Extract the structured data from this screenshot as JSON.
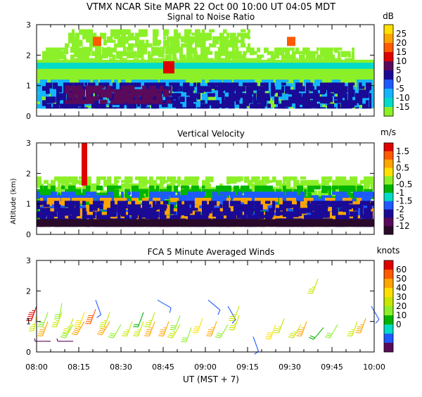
{
  "chart_data": {
    "header": "VTMX  NCAR Site  MAPR 22 Oct 00  10:00 UT  04:05  MDT",
    "shared_y_axis_label": "Altitude (km)",
    "x_axis": {
      "label": "UT  (MST + 7)",
      "tick_labels": [
        "08:00",
        "08:15",
        "08:30",
        "08:45",
        "09:00",
        "09:15",
        "09:30",
        "09:45",
        "10:00"
      ],
      "tick_minutes": [
        0,
        15,
        30,
        45,
        60,
        75,
        90,
        105,
        120
      ],
      "xlim_minutes": [
        0,
        120
      ]
    },
    "panels": [
      {
        "type": "heatmap",
        "title": "Signal to Noise Ratio",
        "units": "dB",
        "ylim": [
          0,
          3
        ],
        "yticks": [
          "0",
          "1",
          "2",
          "3"
        ],
        "scale_labels": [
          "25",
          "20",
          "15",
          "10",
          "5",
          "0",
          "-5",
          "-10",
          "-15"
        ],
        "scale_colors": [
          "#ffe000",
          "#ffa500",
          "#ff5a00",
          "#e00000",
          "#5a0a5a",
          "#1a0a96",
          "#1e5aff",
          "#14b4ff",
          "#00dcc8",
          "#8cf028"
        ],
        "field_layers": [
          {
            "band_km": [
              0.25,
              1.85
            ],
            "from_min": 0,
            "to_min": 119,
            "class": 9
          },
          {
            "band_km": [
              1.85,
              2.25
            ],
            "from_min": 2,
            "to_min": 112,
            "class": 9,
            "patchy": true
          },
          {
            "band_km": [
              2.25,
              2.85
            ],
            "from_min": 10,
            "to_min": 75,
            "class": 9,
            "patchy": true
          },
          {
            "band_km": [
              1.55,
              1.75
            ],
            "from_min": 0,
            "to_min": 119,
            "class": 8
          },
          {
            "band_km": [
              0.25,
              1.2
            ],
            "from_min": 0,
            "to_min": 119,
            "class": 7,
            "patchy": true
          },
          {
            "band_km": [
              0.25,
              1.1
            ],
            "from_min": 2,
            "to_min": 118,
            "class": 5,
            "patchy": true
          },
          {
            "band_km": [
              0.4,
              1.0
            ],
            "from_min": 10,
            "to_min": 47,
            "class": 4,
            "patchy": true
          },
          {
            "band_km": [
              1.4,
              1.8
            ],
            "from_min": 45,
            "to_min": 48,
            "class": 3
          },
          {
            "band_km": [
              2.3,
              2.6
            ],
            "from_min": 20,
            "to_min": 22,
            "class": 2
          },
          {
            "band_km": [
              2.3,
              2.6
            ],
            "from_min": 89,
            "to_min": 91,
            "class": 2
          }
        ]
      },
      {
        "type": "heatmap",
        "title": "Vertical Velocity",
        "units": "m/s",
        "ylim": [
          0,
          3
        ],
        "yticks": [
          "0",
          "1",
          "2",
          "3"
        ],
        "scale_labels": [
          "1.5",
          "1",
          "0.5",
          "0",
          "-0.5",
          "-1",
          "-1.5",
          "-2",
          "-5",
          "-12"
        ],
        "scale_colors": [
          "#e00000",
          "#ff5a00",
          "#ffa500",
          "#ffe000",
          "#8cf028",
          "#00b400",
          "#00dcc8",
          "#1e5aff",
          "#1a0a96",
          "#5a0a5a",
          "#2a0a2a"
        ],
        "field_layers": [
          {
            "band_km": [
              0.25,
              1.9
            ],
            "from_min": 0,
            "to_min": 119,
            "class": 4,
            "patchy": true
          },
          {
            "band_km": [
              0.25,
              1.6
            ],
            "from_min": 0,
            "to_min": 119,
            "class": 5,
            "patchy": true
          },
          {
            "band_km": [
              0.25,
              1.4
            ],
            "from_min": 0,
            "to_min": 119,
            "class": 7,
            "patchy": true
          },
          {
            "band_km": [
              0.25,
              1.2
            ],
            "from_min": 0,
            "to_min": 119,
            "class": 2,
            "patchy": true
          },
          {
            "band_km": [
              0.25,
              1.1
            ],
            "from_min": 0,
            "to_min": 119,
            "class": 8,
            "patchy": true
          },
          {
            "band_km": [
              0.25,
              0.5
            ],
            "from_min": 0,
            "to_min": 119,
            "class": 10
          },
          {
            "band_km": [
              1.6,
              3.0
            ],
            "from_min": 16,
            "to_min": 17,
            "class": 0
          }
        ]
      },
      {
        "type": "wind-barbs",
        "title": "FCA 5 Minute Averaged Winds",
        "units": "knots",
        "ylim": [
          0,
          3
        ],
        "yticks": [
          "0",
          "1",
          "2",
          "3"
        ],
        "scale_labels": [
          "60",
          "50",
          "40",
          "30",
          "20",
          "10",
          "0"
        ],
        "scale_colors": [
          "#e00000",
          "#ff5a00",
          "#ffa500",
          "#ffe000",
          "#c8e600",
          "#8cf028",
          "#00b400",
          "#00dcc8",
          "#1e5aff",
          "#5a0a5a"
        ],
        "barbs": [
          {
            "t": 0,
            "alt": 1.2,
            "speed": 33,
            "dir": 190
          },
          {
            "t": 0,
            "alt": 1.5,
            "speed": 55,
            "dir": 200
          },
          {
            "t": 4,
            "alt": 1.0,
            "speed": 45,
            "dir": 200
          },
          {
            "t": 4,
            "alt": 1.3,
            "speed": 30,
            "dir": 200
          },
          {
            "t": 9,
            "alt": 1.3,
            "speed": 33,
            "dir": 200
          },
          {
            "t": 9,
            "alt": 1.6,
            "speed": 30,
            "dir": 190
          },
          {
            "t": 13,
            "alt": 0.9,
            "speed": 30,
            "dir": 210
          },
          {
            "t": 13,
            "alt": 1.1,
            "speed": 35,
            "dir": 200
          },
          {
            "t": 17,
            "alt": 1.0,
            "speed": 45,
            "dir": 210
          },
          {
            "t": 17,
            "alt": 1.3,
            "speed": 40,
            "dir": 200
          },
          {
            "t": 21,
            "alt": 1.4,
            "speed": 50,
            "dir": 200
          },
          {
            "t": 21,
            "alt": 1.7,
            "speed": 10,
            "dir": 160
          },
          {
            "t": 26,
            "alt": 1.0,
            "speed": 45,
            "dir": 210
          },
          {
            "t": 26,
            "alt": 1.3,
            "speed": 33,
            "dir": 200
          },
          {
            "t": 30,
            "alt": 0.9,
            "speed": 30,
            "dir": 210
          },
          {
            "t": 34,
            "alt": 1.0,
            "speed": 33,
            "dir": 200
          },
          {
            "t": 38,
            "alt": 1.0,
            "speed": 33,
            "dir": 200
          },
          {
            "t": 38,
            "alt": 1.3,
            "speed": 20,
            "dir": 200
          },
          {
            "t": 42,
            "alt": 1.0,
            "speed": 45,
            "dir": 200
          },
          {
            "t": 42,
            "alt": 1.3,
            "speed": 33,
            "dir": 200
          },
          {
            "t": 43,
            "alt": 1.7,
            "speed": 10,
            "dir": 120
          },
          {
            "t": 47,
            "alt": 1.0,
            "speed": 45,
            "dir": 200
          },
          {
            "t": 51,
            "alt": 0.9,
            "speed": 35,
            "dir": 210
          },
          {
            "t": 51,
            "alt": 1.2,
            "speed": 30,
            "dir": 200
          },
          {
            "t": 55,
            "alt": 0.8,
            "speed": 30,
            "dir": 200
          },
          {
            "t": 59,
            "alt": 1.1,
            "speed": 40,
            "dir": 200
          },
          {
            "t": 61,
            "alt": 1.7,
            "speed": 10,
            "dir": 130
          },
          {
            "t": 64,
            "alt": 1.0,
            "speed": 45,
            "dir": 200
          },
          {
            "t": 68,
            "alt": 0.9,
            "speed": 30,
            "dir": 210
          },
          {
            "t": 68,
            "alt": 1.5,
            "speed": 10,
            "dir": 150
          },
          {
            "t": 72,
            "alt": 1.2,
            "speed": 33,
            "dir": 200
          },
          {
            "t": 72,
            "alt": 1.5,
            "speed": 33,
            "dir": 200
          },
          {
            "t": 77,
            "alt": 0.5,
            "speed": 10,
            "dir": 160
          },
          {
            "t": 85,
            "alt": 0.9,
            "speed": 40,
            "dir": 200
          },
          {
            "t": 88,
            "alt": 1.1,
            "speed": 35,
            "dir": 200
          },
          {
            "t": 94,
            "alt": 0.9,
            "speed": 35,
            "dir": 210
          },
          {
            "t": 96,
            "alt": 1.0,
            "speed": 45,
            "dir": 200
          },
          {
            "t": 100,
            "alt": 2.4,
            "speed": 33,
            "dir": 200
          },
          {
            "t": 102,
            "alt": 0.8,
            "speed": 20,
            "dir": 220
          },
          {
            "t": 107,
            "alt": 0.9,
            "speed": 30,
            "dir": 210
          },
          {
            "t": 114,
            "alt": 1.0,
            "speed": 35,
            "dir": 200
          },
          {
            "t": 117,
            "alt": 1.1,
            "speed": 45,
            "dir": 200
          },
          {
            "t": 119,
            "alt": 1.5,
            "speed": 10,
            "dir": 150
          },
          {
            "t": 5,
            "alt": 0.35,
            "speed": 5,
            "dir": 270
          },
          {
            "t": 13,
            "alt": 0.35,
            "speed": 5,
            "dir": 270
          }
        ]
      }
    ]
  }
}
